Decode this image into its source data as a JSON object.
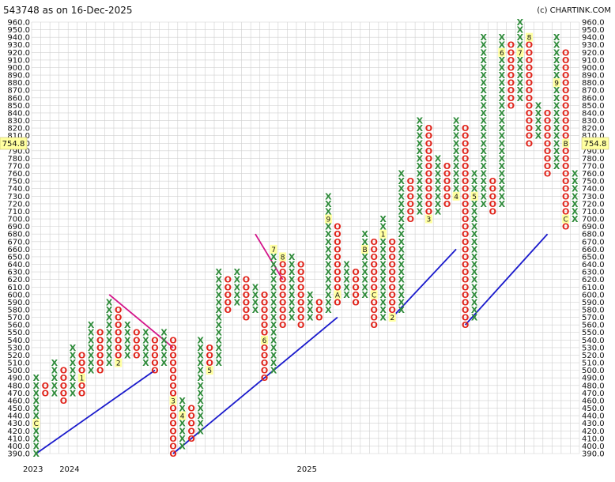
{
  "header": {
    "title": "543748 as on 16-Dec-2025",
    "credit": "(c) CHARTINK.COM"
  },
  "price_label": "754.8",
  "x_labels": [
    "2023",
    "2024",
    "2025"
  ],
  "colors": {
    "x": "#2e8b3a",
    "o": "#e0241b",
    "support": "#1a1acc",
    "resistance": "#d4148a",
    "marker_bg": "#ffffa0",
    "grid": "#d0d0d0"
  },
  "chart_data": {
    "type": "point-and-figure",
    "title": "543748 as on 16-Dec-2025",
    "box_size": 10,
    "ylim": [
      390,
      960
    ],
    "yticks": [
      390,
      400,
      410,
      420,
      430,
      440,
      450,
      460,
      470,
      480,
      490,
      500,
      510,
      520,
      530,
      540,
      550,
      560,
      570,
      580,
      590,
      600,
      610,
      620,
      630,
      640,
      650,
      660,
      670,
      680,
      690,
      700,
      710,
      720,
      730,
      740,
      750,
      760,
      770,
      780,
      790,
      800,
      810,
      820,
      830,
      840,
      850,
      860,
      870,
      880,
      890,
      900,
      910,
      920,
      930,
      940,
      950,
      960
    ],
    "last_price": 754.8,
    "x_axis_labels": [
      {
        "label": "2023",
        "column": 0
      },
      {
        "label": "2024",
        "column": 4
      },
      {
        "label": "2025",
        "column": 30
      }
    ],
    "columns": [
      {
        "type": "X",
        "low": 390,
        "high": 490,
        "markers": [
          {
            "price": 430,
            "label": "C"
          }
        ]
      },
      {
        "type": "O",
        "low": 470,
        "high": 480
      },
      {
        "type": "X",
        "low": 470,
        "high": 510
      },
      {
        "type": "O",
        "low": 460,
        "high": 500
      },
      {
        "type": "X",
        "low": 470,
        "high": 530
      },
      {
        "type": "O",
        "low": 470,
        "high": 520,
        "markers": [
          {
            "price": 490,
            "label": "1"
          }
        ]
      },
      {
        "type": "X",
        "low": 500,
        "high": 560
      },
      {
        "type": "O",
        "low": 500,
        "high": 550
      },
      {
        "type": "X",
        "low": 510,
        "high": 590
      },
      {
        "type": "O",
        "low": 510,
        "high": 580,
        "markers": [
          {
            "price": 510,
            "label": "2"
          }
        ]
      },
      {
        "type": "X",
        "low": 520,
        "high": 560
      },
      {
        "type": "O",
        "low": 520,
        "high": 550
      },
      {
        "type": "X",
        "low": 510,
        "high": 550
      },
      {
        "type": "O",
        "low": 500,
        "high": 540
      },
      {
        "type": "X",
        "low": 510,
        "high": 550
      },
      {
        "type": "O",
        "low": 390,
        "high": 540,
        "markers": [
          {
            "price": 460,
            "label": "3"
          }
        ]
      },
      {
        "type": "X",
        "low": 400,
        "high": 460,
        "markers": [
          {
            "price": 440,
            "label": "4"
          }
        ]
      },
      {
        "type": "O",
        "low": 410,
        "high": 450
      },
      {
        "type": "X",
        "low": 420,
        "high": 540
      },
      {
        "type": "O",
        "low": 500,
        "high": 530,
        "markers": [
          {
            "price": 500,
            "label": "5"
          }
        ]
      },
      {
        "type": "X",
        "low": 510,
        "high": 630
      },
      {
        "type": "O",
        "low": 580,
        "high": 620
      },
      {
        "type": "X",
        "low": 590,
        "high": 630
      },
      {
        "type": "O",
        "low": 570,
        "high": 620
      },
      {
        "type": "X",
        "low": 580,
        "high": 610
      },
      {
        "type": "O",
        "low": 490,
        "high": 600,
        "markers": [
          {
            "price": 540,
            "label": "6"
          }
        ]
      },
      {
        "type": "X",
        "low": 500,
        "high": 660,
        "markers": [
          {
            "price": 660,
            "label": "7"
          }
        ]
      },
      {
        "type": "O",
        "low": 560,
        "high": 650,
        "markers": [
          {
            "price": 650,
            "label": "8"
          }
        ]
      },
      {
        "type": "X",
        "low": 570,
        "high": 650
      },
      {
        "type": "O",
        "low": 560,
        "high": 640
      },
      {
        "type": "X",
        "low": 570,
        "high": 600
      },
      {
        "type": "O",
        "low": 570,
        "high": 590
      },
      {
        "type": "X",
        "low": 580,
        "high": 730,
        "markers": [
          {
            "price": 700,
            "label": "9"
          }
        ]
      },
      {
        "type": "O",
        "low": 590,
        "high": 690,
        "markers": [
          {
            "price": 600,
            "label": "A"
          }
        ]
      },
      {
        "type": "X",
        "low": 600,
        "high": 640
      },
      {
        "type": "O",
        "low": 590,
        "high": 630
      },
      {
        "type": "X",
        "low": 600,
        "high": 680,
        "markers": [
          {
            "price": 660,
            "label": "B"
          }
        ]
      },
      {
        "type": "O",
        "low": 560,
        "high": 670,
        "markers": [
          {
            "price": 600,
            "label": "C"
          }
        ]
      },
      {
        "type": "X",
        "low": 570,
        "high": 700,
        "markers": [
          {
            "price": 680,
            "label": "1"
          }
        ]
      },
      {
        "type": "O",
        "low": 570,
        "high": 670,
        "markers": [
          {
            "price": 570,
            "label": "2"
          }
        ]
      },
      {
        "type": "X",
        "low": 580,
        "high": 760
      },
      {
        "type": "O",
        "low": 700,
        "high": 750
      },
      {
        "type": "X",
        "low": 710,
        "high": 830
      },
      {
        "type": "O",
        "low": 700,
        "high": 820,
        "markers": [
          {
            "price": 700,
            "label": "3"
          }
        ]
      },
      {
        "type": "X",
        "low": 710,
        "high": 780
      },
      {
        "type": "O",
        "low": 720,
        "high": 770
      },
      {
        "type": "X",
        "low": 730,
        "high": 830,
        "markers": [
          {
            "price": 730,
            "label": "4"
          }
        ]
      },
      {
        "type": "O",
        "low": 560,
        "high": 820
      },
      {
        "type": "X",
        "low": 570,
        "high": 760,
        "markers": [
          {
            "price": 730,
            "label": "5"
          }
        ]
      },
      {
        "type": "X",
        "low": 720,
        "high": 940
      },
      {
        "type": "O",
        "low": 710,
        "high": 750
      },
      {
        "type": "X",
        "low": 720,
        "high": 940,
        "markers": [
          {
            "price": 920,
            "label": "6"
          }
        ]
      },
      {
        "type": "O",
        "low": 850,
        "high": 930
      },
      {
        "type": "X",
        "low": 860,
        "high": 960,
        "markers": [
          {
            "price": 920,
            "label": "7"
          }
        ]
      },
      {
        "type": "O",
        "low": 800,
        "high": 940,
        "markers": [
          {
            "price": 940,
            "label": "8"
          }
        ]
      },
      {
        "type": "X",
        "low": 810,
        "high": 850
      },
      {
        "type": "O",
        "low": 760,
        "high": 840
      },
      {
        "type": "X",
        "low": 770,
        "high": 940,
        "markers": [
          {
            "price": 880,
            "label": "9"
          }
        ]
      },
      {
        "type": "O",
        "low": 690,
        "high": 920,
        "markers": [
          {
            "price": 800,
            "label": "B"
          },
          {
            "price": 700,
            "label": "C"
          }
        ]
      },
      {
        "type": "X",
        "low": 700,
        "high": 760
      }
    ],
    "trendlines": [
      {
        "kind": "support",
        "from": {
          "column": 0,
          "price": 390
        },
        "to": {
          "column": 13,
          "price": 500
        }
      },
      {
        "kind": "resistance",
        "from": {
          "column": 8,
          "price": 600
        },
        "to": {
          "column": 15,
          "price": 530
        }
      },
      {
        "kind": "support",
        "from": {
          "column": 15,
          "price": 390
        },
        "to": {
          "column": 33,
          "price": 570
        }
      },
      {
        "kind": "resistance",
        "from": {
          "column": 24,
          "price": 680
        },
        "to": {
          "column": 27,
          "price": 620
        }
      },
      {
        "kind": "support",
        "from": {
          "column": 39,
          "price": 570
        },
        "to": {
          "column": 46,
          "price": 660
        }
      },
      {
        "kind": "support",
        "from": {
          "column": 47,
          "price": 560
        },
        "to": {
          "column": 56,
          "price": 680
        }
      }
    ]
  }
}
